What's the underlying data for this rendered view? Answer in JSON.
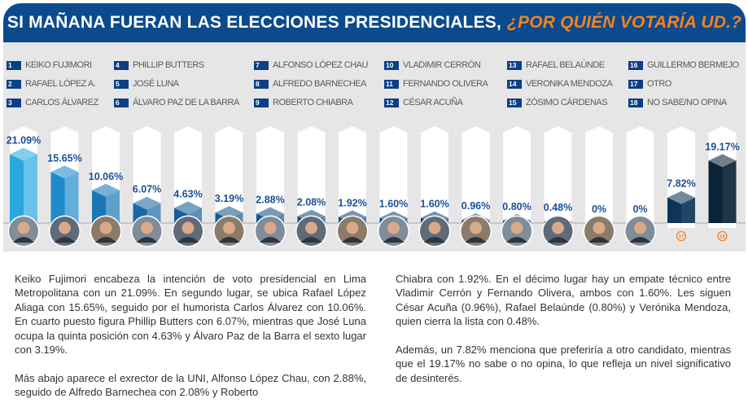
{
  "header": {
    "title": "SI MAÑANA FUERAN LAS ELECCIONES PRESIDENCIALES,",
    "question": "¿POR QUIÉN VOTARÍA UD.?"
  },
  "colors": {
    "header": "#0b4a8d",
    "accent": "#f58220",
    "label": "#1a4f96"
  },
  "chart_data": {
    "type": "bar",
    "categories": [
      "1",
      "2",
      "3",
      "4",
      "5",
      "6",
      "7",
      "8",
      "9",
      "10",
      "11",
      "12",
      "13",
      "14",
      "15",
      "16",
      "17",
      "18"
    ],
    "legend": [
      "KEIKO FUJIMORI",
      "RAFAEL LÓPEZ A.",
      "CARLOS ÁLVAREZ",
      "PHILLIP BUTTERS",
      "JOSÉ LUNA",
      "ÁLVARO PAZ DE LA BARRA",
      "ALFONSO LÓPEZ CHAU",
      "ALFREDO BARNECHEA",
      "ROBERTO CHIABRA",
      "VLADIMIR CERRÓN",
      "FERNANDO OLIVERA",
      "CÉSAR ACUÑA",
      "RAFAEL BELAÚNDE",
      "VERONIKA MENDOZA",
      "ZÓSIMO CÁRDENAS",
      "GUILLERMO BERMEJO",
      "OTRO",
      "NO SABE/NO OPINA"
    ],
    "values": [
      21.09,
      15.65,
      10.06,
      6.07,
      4.63,
      3.19,
      2.88,
      2.08,
      1.92,
      1.6,
      1.6,
      0.96,
      0.8,
      0.48,
      0,
      0,
      7.82,
      19.17
    ],
    "labels": [
      "21.09%",
      "15.65%",
      "10.06%",
      "6.07%",
      "4.63%",
      "3.19%",
      "2.88%",
      "2.08%",
      "1.92%",
      "1.60%",
      "1.60%",
      "0.96%",
      "0.80%",
      "0.48%",
      "0%",
      "0%",
      "7.82%",
      "19.17%"
    ],
    "bar_colors": [
      "#29a8e0",
      "#1f8bcb",
      "#1a77b5",
      "#1a68a3",
      "#175e96",
      "#165a8e",
      "#155588",
      "#134f80",
      "#124a7a",
      "#124676",
      "#114372",
      "#10406e",
      "#0f3d6a",
      "#0f3a66",
      "#0e3862",
      "#0e3660",
      "#0d3558",
      "#0b2336"
    ],
    "ylim": [
      0,
      25
    ]
  },
  "text": {
    "left": [
      "Keiko Fujimori encabeza la intención de voto presidencial en Lima Metropolitana con un 21.09%. En segundo lugar, se ubica Rafael López Aliaga con 15.65%, seguido por el humorista Carlos Álvarez con 10.06%. En cuarto puesto figura Phillip Butters con 6.07%, mientras que José Luna ocupa la quinta posición con 4.63% y Álvaro Paz de la Barra el sexto lugar con 3.19%.",
      "Más abajo aparece el exrector de la UNI, Alfonso López Chau, con 2.88%, seguido de Alfredo Barnechea con 2.08% y Roberto"
    ],
    "right": [
      "Chiabra con 1.92%. En el décimo lugar hay un empate técnico entre Vladimir Cerrón y Fernando Olivera, ambos con 1.60%. Les siguen César Acuña (0.96%), Rafael Belaúnde (0.80%) y Verónika Mendoza, quien cierra la lista con 0.48%.",
      "Además, un 7.82% menciona que preferiría a otro candidato, mientras que el 19.17% no sabe o no opina, lo que refleja un nivel significativo de desinterés."
    ]
  }
}
